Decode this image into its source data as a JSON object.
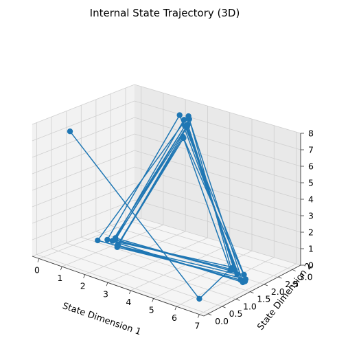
{
  "chart_data": {
    "type": "line",
    "projection": "3d",
    "title": "Internal State Trajectory (3D)",
    "xlabel": "State Dimension 1",
    "ylabel": "State Dimension 2",
    "zlabel": "",
    "xticks": [
      "0",
      "1",
      "2",
      "3",
      "4",
      "5",
      "6",
      "7"
    ],
    "yticks": [
      "0.0",
      "0.5",
      "1.0",
      "1.5",
      "2.0",
      "2.5",
      "3.0"
    ],
    "zticks": [
      "0",
      "1",
      "2",
      "3",
      "4",
      "5",
      "6",
      "7",
      "8"
    ],
    "xlim": [
      -0.3,
      7.2
    ],
    "ylim": [
      -0.15,
      3.3
    ],
    "zlim": [
      0,
      8
    ],
    "grid": true,
    "color": "#1f77b4",
    "marker": "circle",
    "series": [
      {
        "points": [
          [
            0.9,
            0.2,
            7.9
          ],
          [
            6.2,
            0.5,
            0.0
          ],
          [
            5.6,
            2.1,
            0.2
          ],
          [
            2.4,
            3.1,
            7.3
          ],
          [
            0.3,
            1.6,
            0.0
          ],
          [
            6.4,
            1.8,
            0.1
          ],
          [
            2.0,
            3.1,
            7.2
          ],
          [
            0.6,
            1.7,
            0.1
          ],
          [
            6.5,
            1.8,
            0.0
          ],
          [
            2.3,
            3.2,
            7.0
          ],
          [
            0.7,
            1.8,
            0.0
          ],
          [
            5.7,
            2.1,
            0.3
          ],
          [
            2.5,
            3.0,
            6.9
          ],
          [
            0.8,
            1.8,
            0.1
          ],
          [
            5.9,
            2.0,
            0.3
          ],
          [
            2.2,
            3.1,
            7.0
          ],
          [
            0.7,
            1.9,
            0.1
          ],
          [
            6.3,
            2.0,
            0.2
          ],
          [
            2.5,
            2.9,
            6.9
          ],
          [
            0.7,
            1.9,
            0.0
          ],
          [
            5.7,
            2.0,
            0.2
          ],
          [
            2.8,
            2.6,
            6.6
          ],
          [
            1.3,
            1.5,
            0.2
          ],
          [
            6.0,
            2.0,
            0.1
          ],
          [
            2.6,
            2.9,
            6.9
          ],
          [
            1.3,
            1.5,
            0.1
          ],
          [
            6.5,
            1.9,
            0.1
          ],
          [
            2.7,
            2.7,
            6.4
          ],
          [
            1.2,
            1.6,
            0.1
          ],
          [
            6.6,
            1.8,
            0.1
          ]
        ]
      }
    ]
  }
}
